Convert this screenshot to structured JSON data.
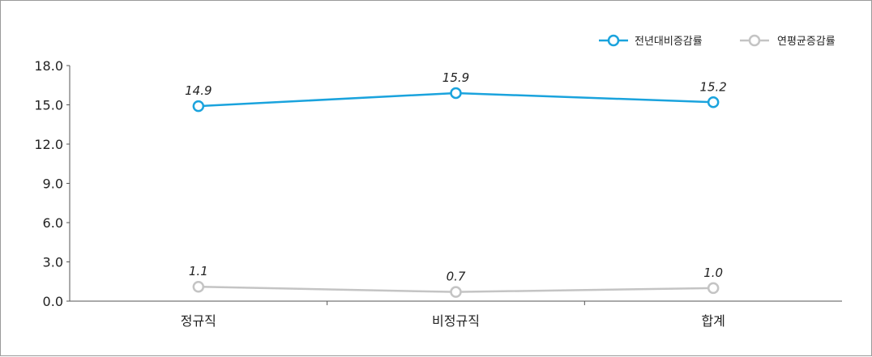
{
  "chart_data": {
    "type": "line",
    "categories": [
      "정규직",
      "비정규직",
      "합계"
    ],
    "series": [
      {
        "name": "전년대비증감률",
        "values": [
          14.9,
          15.9,
          15.2
        ],
        "labels": [
          "14.9",
          "15.9",
          "15.2"
        ],
        "color": "#1aa3dd"
      },
      {
        "name": "연평균증감률",
        "values": [
          1.1,
          0.7,
          1.0
        ],
        "labels": [
          "1.1",
          "0.7",
          "1.0"
        ],
        "color": "#c4c4c4"
      }
    ],
    "yticks": [
      "0.0",
      "3.0",
      "6.0",
      "9.0",
      "12.0",
      "15.0",
      "18.0"
    ],
    "ylim": [
      0,
      18
    ],
    "legend_position": "top-right",
    "grid": false,
    "title": "",
    "xlabel": "",
    "ylabel": ""
  }
}
